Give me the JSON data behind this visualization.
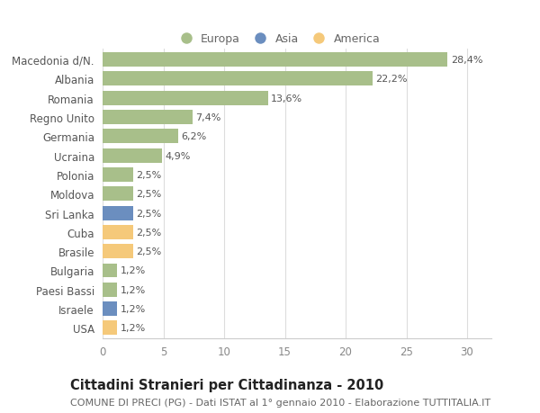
{
  "categories": [
    "Macedonia d/N.",
    "Albania",
    "Romania",
    "Regno Unito",
    "Germania",
    "Ucraina",
    "Polonia",
    "Moldova",
    "Sri Lanka",
    "Cuba",
    "Brasile",
    "Bulgaria",
    "Paesi Bassi",
    "Israele",
    "USA"
  ],
  "values": [
    28.4,
    22.2,
    13.6,
    7.4,
    6.2,
    4.9,
    2.5,
    2.5,
    2.5,
    2.5,
    2.5,
    1.2,
    1.2,
    1.2,
    1.2
  ],
  "labels": [
    "28,4%",
    "22,2%",
    "13,6%",
    "7,4%",
    "6,2%",
    "4,9%",
    "2,5%",
    "2,5%",
    "2,5%",
    "2,5%",
    "2,5%",
    "1,2%",
    "1,2%",
    "1,2%",
    "1,2%"
  ],
  "continents": [
    "Europa",
    "Europa",
    "Europa",
    "Europa",
    "Europa",
    "Europa",
    "Europa",
    "Europa",
    "Asia",
    "America",
    "America",
    "Europa",
    "Europa",
    "Asia",
    "America"
  ],
  "colors": {
    "Europa": "#a8bf8a",
    "Asia": "#6b8ebf",
    "America": "#f5c97a"
  },
  "title": "Cittadini Stranieri per Cittadinanza - 2010",
  "subtitle": "COMUNE DI PRECI (PG) - Dati ISTAT al 1° gennaio 2010 - Elaborazione TUTTITALIA.IT",
  "xlim": [
    0,
    32
  ],
  "xticks": [
    0,
    5,
    10,
    15,
    20,
    25,
    30
  ],
  "background_color": "#ffffff",
  "plot_bg_color": "#ffffff",
  "grid_color": "#dddddd",
  "bar_height": 0.75,
  "title_fontsize": 10.5,
  "subtitle_fontsize": 8,
  "tick_fontsize": 8.5,
  "label_fontsize": 8
}
